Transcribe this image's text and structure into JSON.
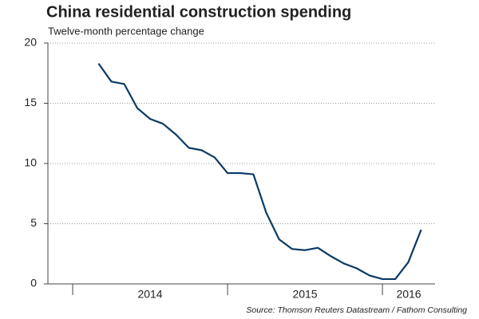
{
  "chart_data": {
    "type": "line",
    "title": "China residential construction spending",
    "subtitle": "Twelve-month percentage change",
    "source": "Source: Thomson Reuters Datastream / Fathom Consulting",
    "x": [
      2014.167,
      2014.25,
      2014.333,
      2014.417,
      2014.5,
      2014.583,
      2014.667,
      2014.75,
      2014.833,
      2014.917,
      2015.0,
      2015.083,
      2015.167,
      2015.25,
      2015.333,
      2015.417,
      2015.5,
      2015.583,
      2015.667,
      2015.75,
      2015.833,
      2015.917,
      2016.0,
      2016.083,
      2016.167,
      2016.25
    ],
    "series": [
      {
        "name": "Residential construction spending",
        "color": "#0b3a66",
        "values": [
          18.3,
          16.8,
          16.6,
          14.6,
          13.7,
          13.3,
          12.4,
          11.3,
          11.1,
          10.5,
          9.2,
          9.2,
          9.1,
          5.9,
          3.7,
          2.9,
          2.8,
          3.0,
          2.3,
          1.7,
          1.3,
          0.7,
          0.4,
          0.4,
          1.8,
          4.5
        ]
      }
    ],
    "xlim": [
      2013.84,
      2016.34
    ],
    "xticks": [
      2014,
      2015,
      2016
    ],
    "ylim": [
      0,
      20
    ],
    "yticks": [
      0,
      5,
      10,
      15,
      20
    ],
    "grid": true
  }
}
